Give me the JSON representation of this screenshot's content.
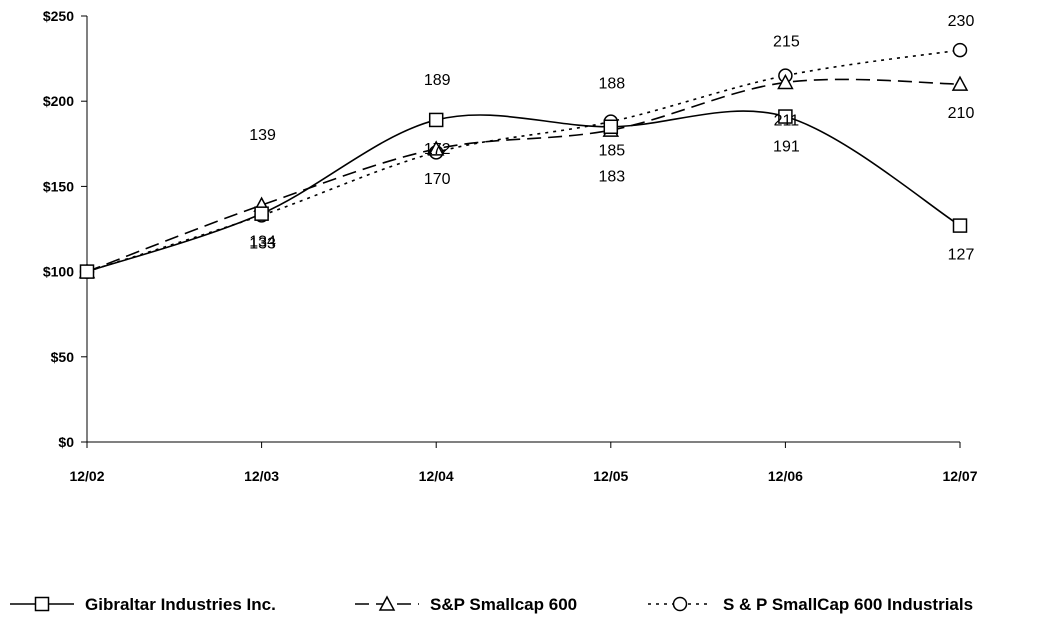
{
  "chart_data": {
    "type": "line",
    "title": "",
    "xlabel": "",
    "ylabel": "",
    "x": [
      "12/02",
      "12/03",
      "12/04",
      "12/05",
      "12/06",
      "12/07"
    ],
    "y_ticks": [
      "$0",
      "$50",
      "$100",
      "$150",
      "$200",
      "$250"
    ],
    "ylim": [
      0,
      250
    ],
    "grid": false,
    "legend_position": "bottom",
    "series": [
      {
        "name": "Gibraltar Industries Inc.",
        "marker": "square",
        "dash": "solid",
        "values": [
          100,
          134,
          189,
          185,
          191,
          127
        ]
      },
      {
        "name": "S&P Smallcap 600",
        "marker": "triangle",
        "dash": "dashed",
        "values": [
          100,
          139,
          172,
          183,
          211,
          210
        ]
      },
      {
        "name": "S & P SmallCap 600 Industrials",
        "marker": "circle",
        "dash": "dotted",
        "values": [
          100,
          133,
          170,
          188,
          215,
          230
        ]
      }
    ],
    "data_labels": [
      {
        "text": "139",
        "x_index": 1,
        "value": 139
      },
      {
        "text": "134",
        "x_index": 1,
        "value": 134
      },
      {
        "text": "133",
        "x_index": 1,
        "value": 133
      },
      {
        "text": "189",
        "x_index": 2,
        "value": 189
      },
      {
        "text": "172",
        "x_index": 2,
        "value": 172
      },
      {
        "text": "170",
        "x_index": 2,
        "value": 170
      },
      {
        "text": "188",
        "x_index": 3,
        "value": 188
      },
      {
        "text": "185",
        "x_index": 3,
        "value": 185
      },
      {
        "text": "183",
        "x_index": 3,
        "value": 183
      },
      {
        "text": "215",
        "x_index": 4,
        "value": 215
      },
      {
        "text": "211",
        "x_index": 4,
        "value": 211
      },
      {
        "text": "191",
        "x_index": 4,
        "value": 191
      },
      {
        "text": "230",
        "x_index": 5,
        "value": 230
      },
      {
        "text": "210",
        "x_index": 5,
        "value": 210
      },
      {
        "text": "127",
        "x_index": 5,
        "value": 127
      }
    ]
  }
}
